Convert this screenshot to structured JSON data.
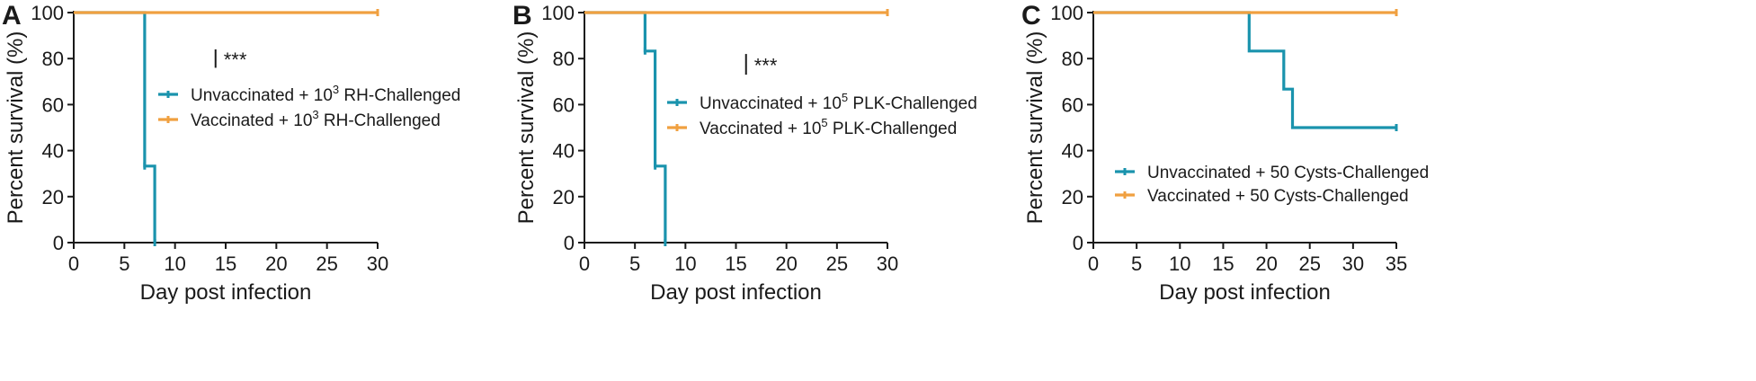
{
  "chart_data": [
    {
      "panel": "A",
      "type": "line",
      "subtype": "kaplan-meier step",
      "xlabel": "Day post infection",
      "ylabel": "Percent survival (%)",
      "xlim": [
        0,
        30
      ],
      "ylim": [
        0,
        100
      ],
      "xticks": [
        0,
        5,
        10,
        15,
        20,
        25,
        30
      ],
      "yticks": [
        0,
        20,
        40,
        60,
        80,
        100
      ],
      "significance": "***",
      "significance_x": 14,
      "significance_y": [
        76,
        84
      ],
      "series": [
        {
          "name": "Unvaccinated + 10",
          "sup": "3",
          "name_suffix": " RH-Challenged",
          "color": "#1a93ad",
          "x": [
            0,
            7,
            7,
            8,
            8
          ],
          "y": [
            100,
            100,
            33.3,
            33.3,
            0
          ],
          "censor": [
            [
              7,
              33.3
            ],
            [
              8,
              0
            ]
          ]
        },
        {
          "name": "Vaccinated + 10",
          "sup": "3",
          "name_suffix": " RH-Challenged",
          "color": "#f0a040",
          "x": [
            0,
            30
          ],
          "y": [
            100,
            100
          ],
          "censor": [
            [
              30,
              100
            ]
          ]
        }
      ]
    },
    {
      "panel": "B",
      "type": "line",
      "subtype": "kaplan-meier step",
      "xlabel": "Day post infection",
      "ylabel": "Percent survival (%)",
      "xlim": [
        0,
        30
      ],
      "ylim": [
        0,
        100
      ],
      "xticks": [
        0,
        5,
        10,
        15,
        20,
        25,
        30
      ],
      "yticks": [
        0,
        20,
        40,
        60,
        80,
        100
      ],
      "significance": "***",
      "significance_x": 16,
      "significance_y": [
        73,
        82
      ],
      "series": [
        {
          "name": "Unvaccinated + 10",
          "sup": "5",
          "name_suffix": " PLK-Challenged",
          "color": "#1a93ad",
          "x": [
            0,
            6,
            6,
            7,
            7,
            8,
            8
          ],
          "y": [
            100,
            100,
            83.3,
            83.3,
            33.3,
            33.3,
            0
          ],
          "censor": [
            [
              6,
              83.3
            ],
            [
              7,
              33.3
            ],
            [
              8,
              0
            ]
          ]
        },
        {
          "name": "Vaccinated + 10",
          "sup": "5",
          "name_suffix": " PLK-Challenged",
          "color": "#f0a040",
          "x": [
            0,
            30
          ],
          "y": [
            100,
            100
          ],
          "censor": [
            [
              30,
              100
            ]
          ]
        }
      ]
    },
    {
      "panel": "C",
      "type": "line",
      "subtype": "kaplan-meier step",
      "xlabel": "Day post infection",
      "ylabel": "Percent survival (%)",
      "xlim": [
        0,
        35
      ],
      "ylim": [
        0,
        100
      ],
      "xticks": [
        0,
        5,
        10,
        15,
        20,
        25,
        30,
        35
      ],
      "yticks": [
        0,
        20,
        40,
        60,
        80,
        100
      ],
      "series": [
        {
          "name": "Unvaccinated + 50 Cysts-Challenged",
          "sup": "",
          "name_suffix": "",
          "color": "#1a93ad",
          "x": [
            0,
            18,
            18,
            22,
            22,
            23,
            23,
            35
          ],
          "y": [
            100,
            100,
            83.3,
            83.3,
            66.7,
            66.7,
            50,
            50
          ],
          "censor": [
            [
              35,
              50
            ]
          ]
        },
        {
          "name": "Vaccinated + 50 Cysts-Challenged",
          "sup": "",
          "name_suffix": "",
          "color": "#f0a040",
          "x": [
            0,
            35
          ],
          "y": [
            100,
            100
          ],
          "censor": [
            [
              35,
              100
            ]
          ]
        }
      ]
    }
  ]
}
